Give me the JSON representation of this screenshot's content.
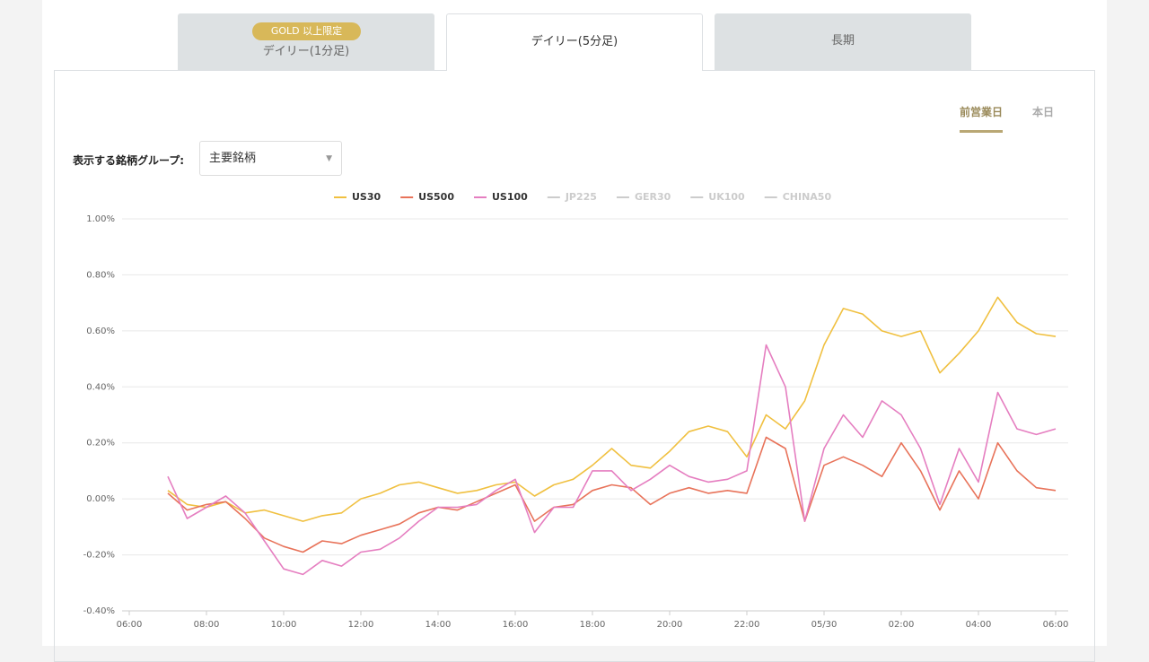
{
  "tabs": [
    "デイリー(1分足)",
    "デイリー(5分足)",
    "長期"
  ],
  "badge": "GOLD 以上限定",
  "period_toggle": [
    "前営業日",
    "本日"
  ],
  "group_label": "表示する銘柄グループ:",
  "group_select": "主要銘柄",
  "chart_data": {
    "type": "line",
    "categories": [
      "06:00",
      null,
      null,
      null,
      "08:00",
      null,
      null,
      null,
      "10:00",
      null,
      null,
      null,
      "12:00",
      null,
      null,
      null,
      "14:00",
      null,
      null,
      null,
      "16:00",
      null,
      null,
      null,
      "18:00",
      null,
      null,
      null,
      "20:00",
      null,
      null,
      null,
      "22:00",
      null,
      null,
      null,
      "05/30",
      null,
      null,
      null,
      "02:00",
      null,
      null,
      null,
      "04:00",
      null,
      null,
      null,
      "06:00"
    ],
    "series": [
      {
        "name": "US30",
        "color": "#f0c040",
        "values": [
          null,
          null,
          0.03,
          -0.02,
          -0.03,
          -0.01,
          -0.05,
          -0.04,
          -0.06,
          -0.08,
          -0.06,
          -0.05,
          0.0,
          0.02,
          0.05,
          0.06,
          0.04,
          0.02,
          0.03,
          0.05,
          0.06,
          0.01,
          0.05,
          0.07,
          0.12,
          0.18,
          0.12,
          0.11,
          0.17,
          0.24,
          0.26,
          0.24,
          0.15,
          0.3,
          0.25,
          0.35,
          0.55,
          0.68,
          0.66,
          0.6,
          0.58,
          0.6,
          0.45,
          0.52,
          0.6,
          0.72,
          0.63,
          0.59,
          0.58
        ]
      },
      {
        "name": "US500",
        "color": "#e8735a",
        "values": [
          null,
          null,
          0.02,
          -0.04,
          -0.02,
          -0.01,
          -0.07,
          -0.14,
          -0.17,
          -0.19,
          -0.15,
          -0.16,
          -0.13,
          -0.11,
          -0.09,
          -0.05,
          -0.03,
          -0.04,
          -0.01,
          0.02,
          0.05,
          -0.08,
          -0.03,
          -0.02,
          0.03,
          0.05,
          0.04,
          -0.02,
          0.02,
          0.04,
          0.02,
          0.03,
          0.02,
          0.22,
          0.18,
          -0.08,
          0.12,
          0.15,
          0.12,
          0.08,
          0.2,
          0.1,
          -0.04,
          0.1,
          0.0,
          0.2,
          0.1,
          0.04,
          0.03
        ]
      },
      {
        "name": "US100",
        "color": "#e57ec0",
        "values": [
          null,
          null,
          0.08,
          -0.07,
          -0.03,
          0.01,
          -0.05,
          -0.15,
          -0.25,
          -0.27,
          -0.22,
          -0.24,
          -0.19,
          -0.18,
          -0.14,
          -0.08,
          -0.03,
          -0.03,
          -0.02,
          0.03,
          0.07,
          -0.12,
          -0.03,
          -0.03,
          0.1,
          0.1,
          0.03,
          0.07,
          0.12,
          0.08,
          0.06,
          0.07,
          0.1,
          0.55,
          0.4,
          -0.08,
          0.18,
          0.3,
          0.22,
          0.35,
          0.3,
          0.18,
          -0.02,
          0.18,
          0.06,
          0.38,
          0.25,
          0.23,
          0.25
        ]
      }
    ],
    "inactive_series": [
      "JP225",
      "GER30",
      "UK100",
      "CHINA50"
    ],
    "ylim": [
      -0.4,
      1.0
    ],
    "yticks": [
      {
        "value": -0.4,
        "label": "-0.40%"
      },
      {
        "value": -0.2,
        "label": "-0.20%"
      },
      {
        "value": 0,
        "label": "0.00%"
      },
      {
        "value": 0.2,
        "label": "0.20%"
      },
      {
        "value": 0.4,
        "label": "0.40%"
      },
      {
        "value": 0.6,
        "label": "0.60%"
      },
      {
        "value": 0.8,
        "label": "0.80%"
      },
      {
        "value": 1.0,
        "label": "1.00%"
      }
    ],
    "grid": true
  }
}
